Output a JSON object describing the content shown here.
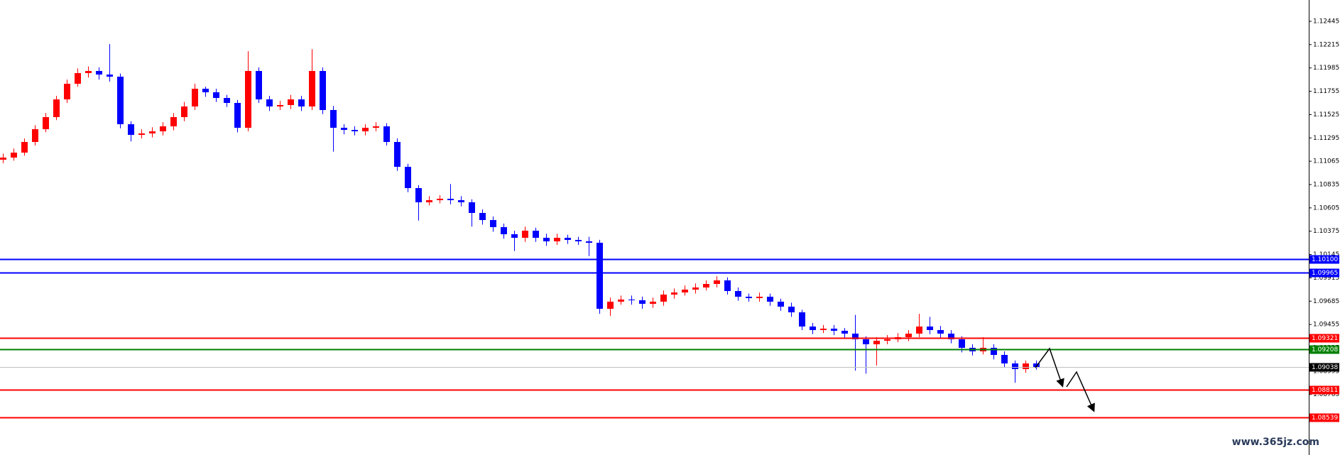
{
  "chart_data": {
    "type": "candlestick",
    "up_color": "#ff0000",
    "down_color": "#0000ff",
    "ylim": [
      1.08168,
      1.12655
    ],
    "yticks": [
      1.12445,
      1.12215,
      1.11985,
      1.11755,
      1.11525,
      1.11295,
      1.11065,
      1.10835,
      1.10605,
      1.10375,
      1.10145,
      1.09915,
      1.09685,
      1.09455,
      1.09225,
      1.08995,
      1.08765
    ],
    "levels": [
      {
        "value": 1.101,
        "label": "1.10100",
        "color": "#0000ff",
        "label_color": "#0000ff"
      },
      {
        "value": 1.09965,
        "label": "1.09965",
        "color": "#0000ff",
        "label_color": "#0000ff"
      },
      {
        "value": 1.09321,
        "label": "1.09321",
        "color": "#ff0000",
        "label_color": "#ff0000"
      },
      {
        "value": 1.09208,
        "label": "1.09208",
        "color": "#008000",
        "label_color": "#008000"
      },
      {
        "value": 1.09038,
        "label": "1.09038",
        "color": "#c0c0c0",
        "label_color": "#000000"
      },
      {
        "value": 1.08811,
        "label": "1.08811",
        "color": "#ff0000",
        "label_color": "#ff0000"
      },
      {
        "value": 1.08539,
        "label": "1.08539",
        "color": "#ff0000",
        "label_color": "#ff0000"
      }
    ],
    "watermark": "www.365jz.com",
    "ohlc": [
      [
        1.1108,
        1.1114,
        1.11045,
        1.11101
      ],
      [
        1.11101,
        1.1119,
        1.1107,
        1.1115
      ],
      [
        1.1115,
        1.1129,
        1.1112,
        1.11255
      ],
      [
        1.11255,
        1.1142,
        1.1122,
        1.11381
      ],
      [
        1.11381,
        1.1154,
        1.1135,
        1.115
      ],
      [
        1.115,
        1.1171,
        1.1147,
        1.11675
      ],
      [
        1.11675,
        1.1187,
        1.1164,
        1.11829
      ],
      [
        1.11829,
        1.1198,
        1.118,
        1.11934
      ],
      [
        1.11934,
        1.12,
        1.1189,
        1.11955
      ],
      [
        1.11955,
        1.1199,
        1.1187,
        1.1192
      ],
      [
        1.1192,
        1.1222,
        1.1185,
        1.11899
      ],
      [
        1.11899,
        1.1193,
        1.1139,
        1.1143
      ],
      [
        1.1143,
        1.1146,
        1.1126,
        1.11325
      ],
      [
        1.11325,
        1.1138,
        1.1129,
        1.11339
      ],
      [
        1.11339,
        1.114,
        1.113,
        1.1136
      ],
      [
        1.1136,
        1.1145,
        1.1132,
        1.11409
      ],
      [
        1.11409,
        1.1154,
        1.1137,
        1.115
      ],
      [
        1.115,
        1.1165,
        1.1146,
        1.11605
      ],
      [
        1.11605,
        1.1183,
        1.1157,
        1.1178
      ],
      [
        1.1178,
        1.118,
        1.117,
        1.11745
      ],
      [
        1.11745,
        1.1178,
        1.1165,
        1.11689
      ],
      [
        1.11689,
        1.1172,
        1.116,
        1.1164
      ],
      [
        1.1164,
        1.1167,
        1.1135,
        1.11395
      ],
      [
        1.11395,
        1.1215,
        1.1136,
        1.11955
      ],
      [
        1.11955,
        1.1199,
        1.1164,
        1.11675
      ],
      [
        1.11675,
        1.1171,
        1.1156,
        1.11605
      ],
      [
        1.11605,
        1.1166,
        1.1157,
        1.11619
      ],
      [
        1.11619,
        1.1172,
        1.1158,
        1.11675
      ],
      [
        1.11675,
        1.1171,
        1.1156,
        1.11605
      ],
      [
        1.11605,
        1.1217,
        1.1157,
        1.11955
      ],
      [
        1.11955,
        1.1199,
        1.1153,
        1.1157
      ],
      [
        1.1157,
        1.1161,
        1.1116,
        1.11395
      ],
      [
        1.11395,
        1.1143,
        1.1133,
        1.11374
      ],
      [
        1.11374,
        1.1141,
        1.1132,
        1.1136
      ],
      [
        1.1136,
        1.1143,
        1.1132,
        1.11395
      ],
      [
        1.11395,
        1.1145,
        1.1136,
        1.11409
      ],
      [
        1.11409,
        1.1144,
        1.1122,
        1.11255
      ],
      [
        1.11255,
        1.1129,
        1.1097,
        1.1101
      ],
      [
        1.1101,
        1.1104,
        1.1076,
        1.108
      ],
      [
        1.108,
        1.1083,
        1.1048,
        1.1066
      ],
      [
        1.1066,
        1.1072,
        1.1063,
        1.10681
      ],
      [
        1.10681,
        1.1073,
        1.1065,
        1.10695
      ],
      [
        1.10695,
        1.1084,
        1.1064,
        1.10681
      ],
      [
        1.10681,
        1.1072,
        1.1062,
        1.1066
      ],
      [
        1.1066,
        1.1069,
        1.1042,
        1.10555
      ],
      [
        1.10555,
        1.1059,
        1.1044,
        1.10485
      ],
      [
        1.10485,
        1.1052,
        1.1037,
        1.10415
      ],
      [
        1.10415,
        1.1045,
        1.103,
        1.10345
      ],
      [
        1.10345,
        1.1038,
        1.1018,
        1.1031
      ],
      [
        1.1031,
        1.1042,
        1.1027,
        1.1038
      ],
      [
        1.1038,
        1.1041,
        1.1027,
        1.1031
      ],
      [
        1.1031,
        1.1035,
        1.1023,
        1.10275
      ],
      [
        1.10275,
        1.1035,
        1.1024,
        1.1031
      ],
      [
        1.1031,
        1.1034,
        1.1025,
        1.10289
      ],
      [
        1.10289,
        1.1032,
        1.1024,
        1.10275
      ],
      [
        1.10275,
        1.1032,
        1.1013,
        1.10261
      ],
      [
        1.10261,
        1.1029,
        1.0956,
        1.0961
      ],
      [
        1.0961,
        1.0972,
        1.0954,
        1.0968
      ],
      [
        1.0968,
        1.0974,
        1.0965,
        1.09701
      ],
      [
        1.09701,
        1.0974,
        1.0965,
        1.09694
      ],
      [
        1.09694,
        1.0973,
        1.0961,
        1.09659
      ],
      [
        1.09659,
        1.0972,
        1.0962,
        1.0968
      ],
      [
        1.0968,
        1.0979,
        1.0964,
        1.0975
      ],
      [
        1.0975,
        1.0981,
        1.0971,
        1.09771
      ],
      [
        1.09771,
        1.0984,
        1.0974,
        1.09799
      ],
      [
        1.09799,
        1.0986,
        1.0976,
        1.0982
      ],
      [
        1.0982,
        1.0989,
        1.0979,
        1.09855
      ],
      [
        1.09855,
        1.0993,
        1.0982,
        1.0989
      ],
      [
        1.0989,
        1.0992,
        1.0975,
        1.09785
      ],
      [
        1.09785,
        1.0982,
        1.0969,
        1.09729
      ],
      [
        1.09729,
        1.0976,
        1.0968,
        1.09715
      ],
      [
        1.09715,
        1.0977,
        1.0968,
        1.09729
      ],
      [
        1.09729,
        1.0976,
        1.0964,
        1.0968
      ],
      [
        1.0968,
        1.0971,
        1.0959,
        1.09631
      ],
      [
        1.09631,
        1.0967,
        1.0953,
        1.09575
      ],
      [
        1.09575,
        1.096,
        1.094,
        1.09435
      ],
      [
        1.09435,
        1.0947,
        1.0936,
        1.094
      ],
      [
        1.094,
        1.0945,
        1.0937,
        1.09414
      ],
      [
        1.09414,
        1.0945,
        1.0935,
        1.09393
      ],
      [
        1.09393,
        1.0942,
        1.0932,
        1.09365
      ],
      [
        1.09365,
        1.0955,
        1.09,
        1.09309
      ],
      [
        1.09309,
        1.0934,
        1.0897,
        1.0926
      ],
      [
        1.0926,
        1.0933,
        1.0905,
        1.09295
      ],
      [
        1.09295,
        1.0935,
        1.0926,
        1.09309
      ],
      [
        1.09309,
        1.0937,
        1.0928,
        1.0933
      ],
      [
        1.0933,
        1.094,
        1.0929,
        1.09365
      ],
      [
        1.09365,
        1.0956,
        1.0933,
        1.09435
      ],
      [
        1.09435,
        1.0953,
        1.0936,
        1.094
      ],
      [
        1.094,
        1.0944,
        1.0932,
        1.09365
      ],
      [
        1.09365,
        1.094,
        1.0927,
        1.09309
      ],
      [
        1.09309,
        1.0934,
        1.0918,
        1.09225
      ],
      [
        1.09225,
        1.0926,
        1.0915,
        1.0919
      ],
      [
        1.0919,
        1.0933,
        1.0916,
        1.09225
      ],
      [
        1.09225,
        1.0926,
        1.0911,
        1.09155
      ],
      [
        1.09155,
        1.0919,
        1.0903,
        1.09071
      ],
      [
        1.09071,
        1.091,
        1.0888,
        1.09015
      ],
      [
        1.09015,
        1.091,
        1.0898,
        1.09071
      ],
      [
        1.09071,
        1.091,
        1.0901,
        1.09036
      ]
    ]
  }
}
